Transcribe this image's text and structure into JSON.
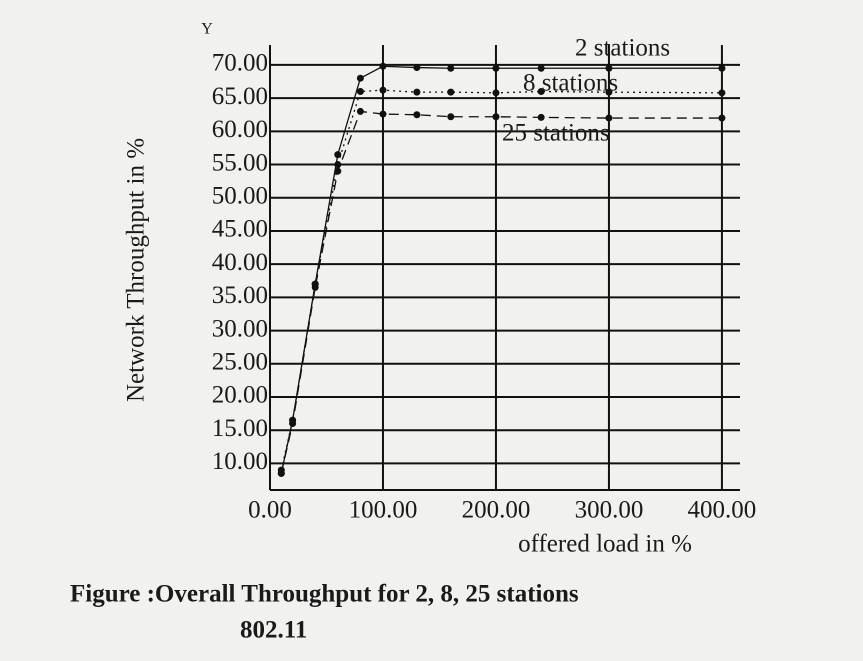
{
  "chart_data": {
    "type": "line",
    "axis_letter": "Y",
    "xlabel": "offered load in %",
    "ylabel": "Network Throughput in %",
    "caption": "Figure   :Overall Throughput for 2, 8, 25 stations",
    "caption_line2": "802.11",
    "x": [
      10,
      20,
      40,
      60,
      80,
      100,
      130,
      160,
      200,
      240,
      300,
      400
    ],
    "series": [
      {
        "name": "2 stations",
        "color": "#111111",
        "dash": "solid",
        "values": [
          8.5,
          16.5,
          37,
          56.5,
          68,
          69.8,
          69.6,
          69.5,
          69.5,
          69.5,
          69.5,
          69.5
        ]
      },
      {
        "name": "8 stations",
        "color": "#111111",
        "dash": "dotted",
        "values": [
          9,
          16.5,
          37,
          55,
          66,
          66.2,
          65.9,
          65.9,
          65.8,
          66,
          65.9,
          65.8
        ]
      },
      {
        "name": "25 stations",
        "color": "#111111",
        "dash": "dashed",
        "values": [
          8.5,
          16,
          36.5,
          54,
          63,
          62.6,
          62.5,
          62.2,
          62.2,
          62.1,
          62,
          62
        ]
      }
    ],
    "xlim": [
      0,
      416
    ],
    "ylim": [
      6,
      73
    ],
    "xticks": [
      {
        "value": 0,
        "label": "0.00"
      },
      {
        "value": 100,
        "label": "100.00"
      },
      {
        "value": 200,
        "label": "200.00"
      },
      {
        "value": 300,
        "label": "300.00"
      },
      {
        "value": 400,
        "label": "400.00"
      }
    ],
    "yticks": [
      {
        "value": 10,
        "label": "10.00"
      },
      {
        "value": 15,
        "label": "15.00"
      },
      {
        "value": 20,
        "label": "20.00"
      },
      {
        "value": 25,
        "label": "25.00"
      },
      {
        "value": 30,
        "label": "30.00"
      },
      {
        "value": 35,
        "label": "35.00"
      },
      {
        "value": 40,
        "label": "40.00"
      },
      {
        "value": 45,
        "label": "45.00"
      },
      {
        "value": 50,
        "label": "50.00"
      },
      {
        "value": 55,
        "label": "55.00"
      },
      {
        "value": 60,
        "label": "60.00"
      },
      {
        "value": 65,
        "label": "65.00"
      },
      {
        "value": 70,
        "label": "70.00"
      }
    ],
    "grid": true
  }
}
